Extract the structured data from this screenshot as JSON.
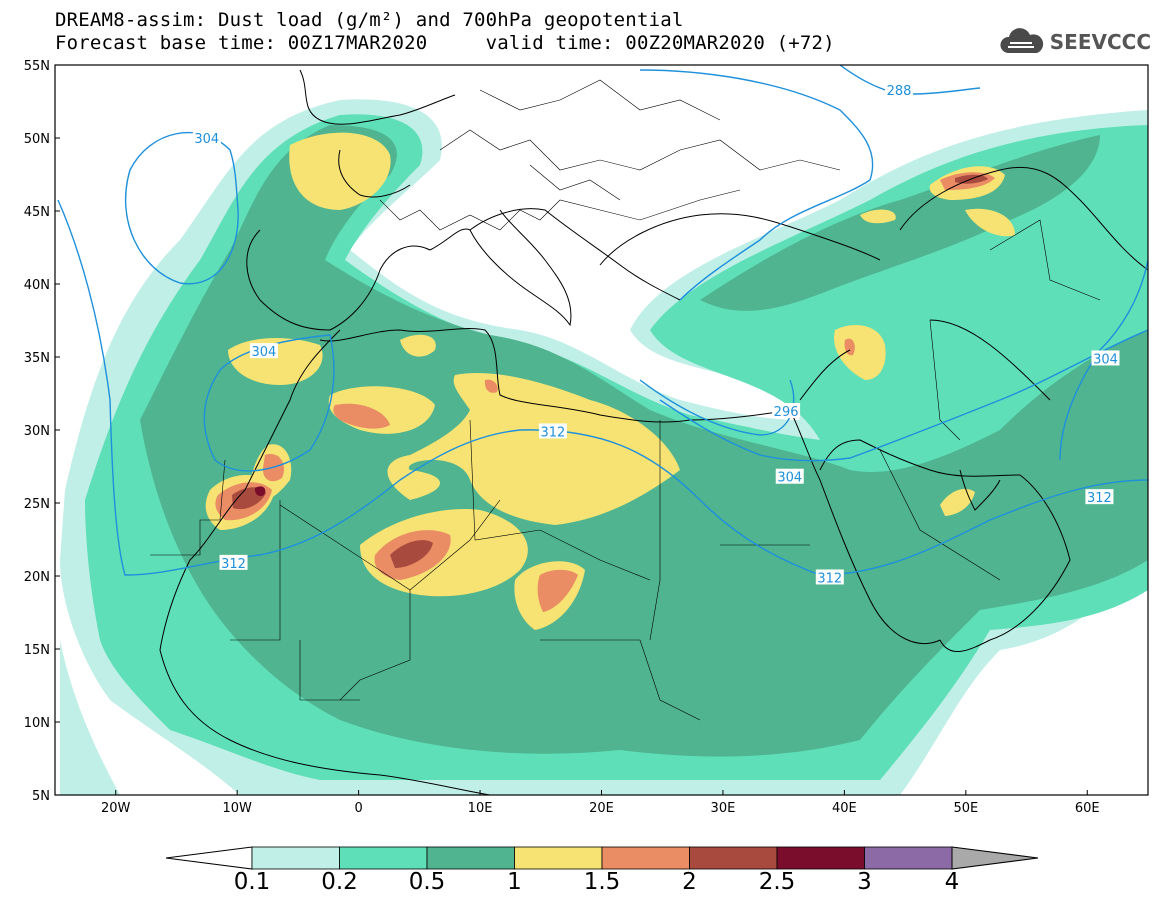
{
  "header": {
    "title_line1": "DREAM8-assim: Dust load (g/m²) and 700hPa geopotential",
    "title_line2": "Forecast base time: 00Z17MAR2020     valid time: 00Z20MAR2020 (+72)",
    "logo_text": "SEEVCCC"
  },
  "map": {
    "lat_labels": [
      "55N",
      "50N",
      "45N",
      "40N",
      "35N",
      "30N",
      "25N",
      "20N",
      "15N",
      "10N",
      "5N"
    ],
    "lon_labels": [
      "20W",
      "10W",
      "0",
      "10E",
      "20E",
      "30E",
      "40E",
      "50E",
      "60E"
    ],
    "contour_labels": [
      {
        "text": "304",
        "lon": -12.5,
        "lat": 50.0
      },
      {
        "text": "288",
        "lon": 44.5,
        "lat": 53.3
      },
      {
        "text": "304",
        "lon": -7.8,
        "lat": 35.4
      },
      {
        "text": "312",
        "lon": 16.0,
        "lat": 29.9
      },
      {
        "text": "296",
        "lon": 35.2,
        "lat": 31.3
      },
      {
        "text": "304",
        "lon": 35.5,
        "lat": 26.8
      },
      {
        "text": "312",
        "lon": -10.3,
        "lat": 20.9
      },
      {
        "text": "312",
        "lon": 38.8,
        "lat": 19.9
      },
      {
        "text": "304",
        "lon": 61.5,
        "lat": 34.9
      },
      {
        "text": "312",
        "lon": 61.0,
        "lat": 25.4
      }
    ],
    "colors": {
      "contour": "#1e90dc",
      "c1": "#bfefe6",
      "c2": "#5fdfb7",
      "c3": "#4fb48f",
      "c4": "#f6e373",
      "c5": "#ea8c64",
      "c6": "#a94a3f",
      "c7": "#7a0d2b",
      "c8": "#8b6aa5",
      "c9": "#a9a9a9"
    }
  },
  "colorbar": {
    "labels": [
      "0.1",
      "0.2",
      "0.5",
      "1",
      "1.5",
      "2",
      "2.5",
      "3",
      "4"
    ],
    "colors": [
      "#bfefe6",
      "#5fdfb7",
      "#4fb48f",
      "#f6e373",
      "#ea8c64",
      "#a94a3f",
      "#7a0d2b",
      "#8b6aa5"
    ],
    "under_color": "#ffffff",
    "over_color": "#a9a9a9"
  }
}
